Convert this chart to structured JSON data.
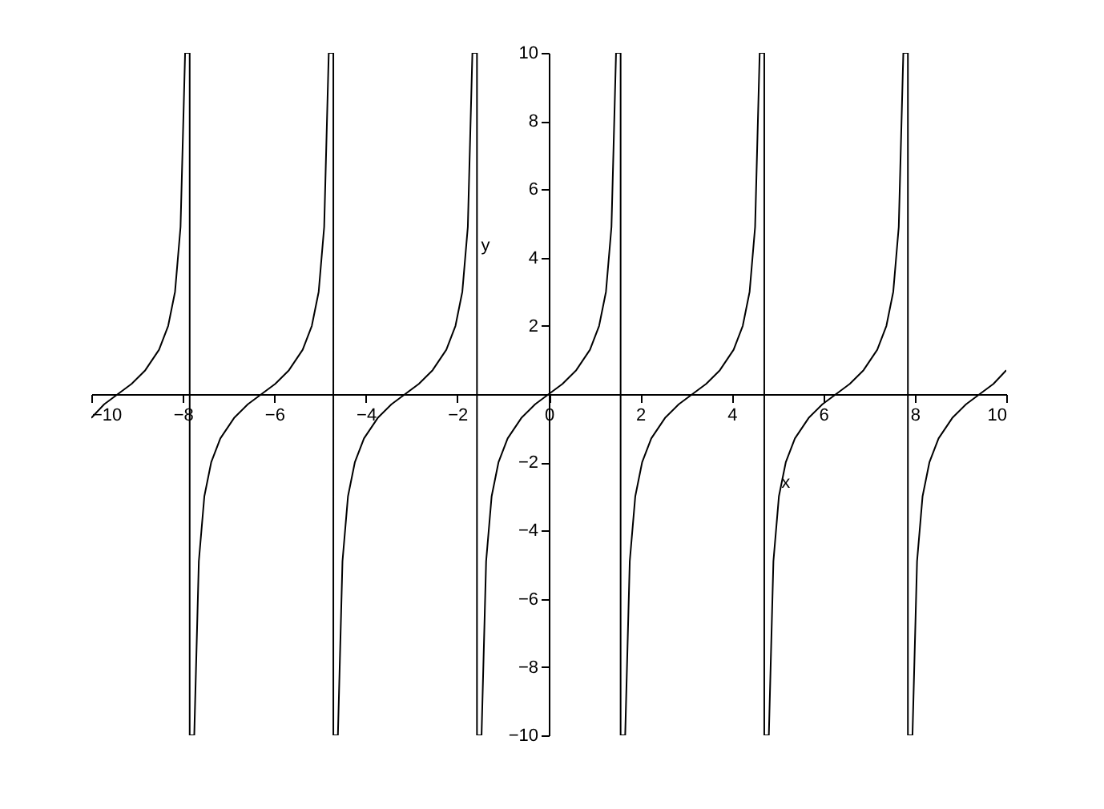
{
  "chart_data": {
    "type": "line",
    "xlabel": "x",
    "ylabel": "y",
    "color": "#000000",
    "x": [
      -10,
      -9.72,
      -9.42,
      -9.12,
      -8.82,
      -8.52,
      -8.32,
      -8.17,
      -8.05,
      -7.95,
      -7.85,
      -7.85,
      -7.75,
      -7.65,
      -7.53,
      -7.38,
      -7.18,
      -6.88,
      -6.58,
      -6.28,
      -5.98,
      -5.68,
      -5.38,
      -5.18,
      -5.03,
      -4.91,
      -4.81,
      -4.71,
      -4.71,
      -4.61,
      -4.51,
      -4.39,
      -4.24,
      -4.04,
      -3.74,
      -3.44,
      -3.14,
      -2.84,
      -2.54,
      -2.24,
      -2.04,
      -1.89,
      -1.77,
      -1.67,
      -1.57,
      -1.57,
      -1.47,
      -1.37,
      -1.25,
      -1.1,
      -0.9,
      -0.6,
      -0.3,
      0,
      0.3,
      0.6,
      0.9,
      1.1,
      1.25,
      1.37,
      1.47,
      1.57,
      1.57,
      1.67,
      1.77,
      1.89,
      2.04,
      2.24,
      2.54,
      2.84,
      3.14,
      3.44,
      3.74,
      4.04,
      4.24,
      4.39,
      4.51,
      4.61,
      4.71,
      4.71,
      4.81,
      4.91,
      5.03,
      5.18,
      5.38,
      5.68,
      5.98,
      6.28,
      6.58,
      6.88,
      7.18,
      7.38,
      7.53,
      7.65,
      7.75,
      7.85,
      7.85,
      7.95,
      8.05,
      8.17,
      8.32,
      8.52,
      8.82,
      9.12,
      9.42,
      9.72,
      10
    ],
    "values": [
      -0.7,
      -0.3,
      0,
      0.3,
      0.7,
      1.3,
      2,
      3,
      4.9,
      10,
      10,
      -10,
      -10,
      -4.9,
      -3,
      -2,
      -1.3,
      -0.7,
      -0.3,
      0,
      0.3,
      0.7,
      1.3,
      2,
      3,
      4.9,
      10,
      10,
      -10,
      -10,
      -4.9,
      -3,
      -2,
      -1.3,
      -0.7,
      -0.3,
      0,
      0.3,
      0.7,
      1.3,
      2,
      3,
      4.9,
      10,
      10,
      -10,
      -10,
      -4.9,
      -3,
      -2,
      -1.3,
      -0.7,
      -0.3,
      0,
      0.3,
      0.7,
      1.3,
      2,
      3,
      4.9,
      10,
      10,
      -10,
      -10,
      -4.9,
      -3,
      -2,
      -1.3,
      -0.7,
      -0.3,
      0,
      0.3,
      0.7,
      1.3,
      2,
      3,
      4.9,
      10,
      10,
      -10,
      -10,
      -4.9,
      -3,
      -2,
      -1.3,
      -0.7,
      -0.3,
      0,
      0.3,
      0.7,
      1.3,
      2,
      3,
      4.9,
      10,
      10,
      -10,
      -10,
      -4.9,
      -3,
      -2,
      -1.3,
      -0.7,
      -0.3,
      0,
      0.3,
      0.7
    ],
    "xlim": [
      -10,
      10
    ],
    "ylim": [
      -10,
      10
    ],
    "xticks": [
      -10,
      -8,
      -6,
      -4,
      -2,
      0,
      2,
      4,
      6,
      8,
      10
    ],
    "yticks": [
      -10,
      -8,
      -6,
      -4,
      -2,
      2,
      4,
      6,
      8,
      10
    ]
  }
}
